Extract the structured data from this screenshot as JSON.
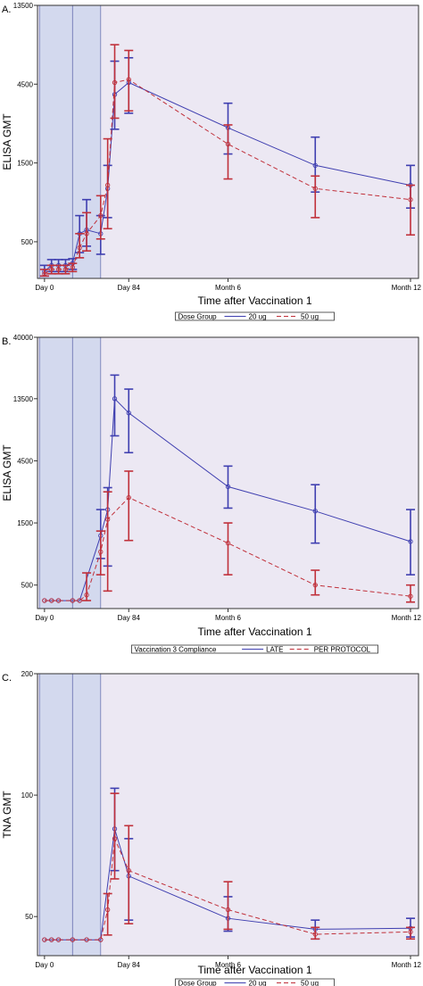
{
  "chart_data": [
    {
      "id": "A",
      "type": "line",
      "panel_label": "A.",
      "xlabel": "Time after Vaccination 1",
      "ylabel": "ELISA GMT",
      "y_scale": "log",
      "ylim": [
        300,
        13500
      ],
      "y_ticks": [
        500,
        1500,
        4500,
        13500
      ],
      "x_ticks": [
        {
          "day": 0,
          "label": "Day 0"
        },
        {
          "day": 84,
          "label": "Day 84"
        },
        {
          "day": 183,
          "label": "Month 6"
        },
        {
          "day": 365,
          "label": "Month 12"
        }
      ],
      "x_range_days": [
        -7,
        373
      ],
      "shaded_intervals": [
        [
          -5,
          28
        ],
        [
          28,
          56
        ]
      ],
      "legend": {
        "title": "Dose Group",
        "entries": [
          "20 ug",
          "50 ug"
        ],
        "position": "bottom"
      },
      "series": [
        {
          "name": "20 ug",
          "color": "#3f3fb0",
          "dash": "solid",
          "points": [
            {
              "x": 0,
              "y": 330,
              "lo": 310,
              "hi": 360
            },
            {
              "x": 7,
              "y": 360,
              "lo": 330,
              "hi": 390
            },
            {
              "x": 14,
              "y": 360,
              "lo": 330,
              "hi": 390
            },
            {
              "x": 21,
              "y": 360,
              "lo": 330,
              "hi": 390
            },
            {
              "x": 28,
              "y": 370,
              "lo": 340,
              "hi": 395
            },
            {
              "x": 35,
              "y": 560,
              "lo": 430,
              "hi": 720
            },
            {
              "x": 42,
              "y": 590,
              "lo": 470,
              "hi": 900
            },
            {
              "x": 56,
              "y": 560,
              "lo": 420,
              "hi": 720
            },
            {
              "x": 63,
              "y": 1050,
              "lo": 700,
              "hi": 1450
            },
            {
              "x": 70,
              "y": 3900,
              "lo": 2400,
              "hi": 6200
            },
            {
              "x": 84,
              "y": 4600,
              "lo": 3000,
              "hi": 6500
            },
            {
              "x": 183,
              "y": 2450,
              "lo": 1700,
              "hi": 3450
            },
            {
              "x": 270,
              "y": 1450,
              "lo": 1000,
              "hi": 2150
            },
            {
              "x": 365,
              "y": 1100,
              "lo": 800,
              "hi": 1450
            }
          ]
        },
        {
          "name": "50 ug",
          "color": "#c0303a",
          "dash": "dashed",
          "points": [
            {
              "x": 0,
              "y": 320,
              "lo": 310,
              "hi": 340
            },
            {
              "x": 7,
              "y": 340,
              "lo": 320,
              "hi": 360
            },
            {
              "x": 14,
              "y": 340,
              "lo": 320,
              "hi": 360
            },
            {
              "x": 21,
              "y": 340,
              "lo": 320,
              "hi": 360
            },
            {
              "x": 28,
              "y": 350,
              "lo": 330,
              "hi": 370
            },
            {
              "x": 35,
              "y": 460,
              "lo": 400,
              "hi": 560
            },
            {
              "x": 42,
              "y": 560,
              "lo": 440,
              "hi": 750
            },
            {
              "x": 56,
              "y": 720,
              "lo": 520,
              "hi": 950
            },
            {
              "x": 63,
              "y": 1100,
              "lo": 600,
              "hi": 2100
            },
            {
              "x": 70,
              "y": 4600,
              "lo": 2800,
              "hi": 7800
            },
            {
              "x": 84,
              "y": 4800,
              "lo": 3100,
              "hi": 7200
            },
            {
              "x": 183,
              "y": 1950,
              "lo": 1200,
              "hi": 2550
            },
            {
              "x": 270,
              "y": 1050,
              "lo": 700,
              "hi": 1250
            },
            {
              "x": 365,
              "y": 900,
              "lo": 550,
              "hi": 1100
            }
          ]
        }
      ]
    },
    {
      "id": "B",
      "type": "line",
      "panel_label": "B.",
      "xlabel": "Time after Vaccination 1",
      "ylabel": "ELISA GMT",
      "y_scale": "log",
      "ylim": [
        330,
        40000
      ],
      "y_ticks": [
        500,
        1500,
        4500,
        13500,
        40000
      ],
      "x_ticks": [
        {
          "day": 0,
          "label": "Day 0"
        },
        {
          "day": 84,
          "label": "Day 84"
        },
        {
          "day": 183,
          "label": "Month 6"
        },
        {
          "day": 365,
          "label": "Month 12"
        }
      ],
      "x_range_days": [
        -7,
        373
      ],
      "shaded_intervals": [
        [
          -5,
          28
        ],
        [
          28,
          56
        ]
      ],
      "legend": {
        "title": "Vaccination 3 Compliance",
        "entries": [
          "LATE",
          "PER PROTOCOL"
        ],
        "position": "bottom"
      },
      "series": [
        {
          "name": "LATE",
          "color": "#3f3fb0",
          "dash": "solid",
          "points": [
            {
              "x": 0,
              "y": 380
            },
            {
              "x": 7,
              "y": 380
            },
            {
              "x": 14,
              "y": 380
            },
            {
              "x": 28,
              "y": 380
            },
            {
              "x": 35,
              "y": 380
            },
            {
              "x": 56,
              "y": 1200,
              "lo": 800,
              "hi": 1900
            },
            {
              "x": 63,
              "y": 1900,
              "lo": 700,
              "hi": 2800
            },
            {
              "x": 70,
              "y": 13500,
              "lo": 7000,
              "hi": 20500
            },
            {
              "x": 84,
              "y": 10500,
              "lo": 5200,
              "hi": 16000
            },
            {
              "x": 183,
              "y": 2850,
              "lo": 1950,
              "hi": 4100
            },
            {
              "x": 270,
              "y": 1850,
              "lo": 1050,
              "hi": 2950
            },
            {
              "x": 365,
              "y": 1080,
              "lo": 600,
              "hi": 1900
            }
          ]
        },
        {
          "name": "PER PROTOCOL",
          "color": "#c0303a",
          "dash": "dashed",
          "points": [
            {
              "x": 0,
              "y": 380
            },
            {
              "x": 7,
              "y": 380
            },
            {
              "x": 14,
              "y": 380
            },
            {
              "x": 28,
              "y": 380
            },
            {
              "x": 35,
              "y": 380
            },
            {
              "x": 42,
              "y": 420,
              "lo": 380,
              "hi": 620
            },
            {
              "x": 56,
              "y": 900,
              "lo": 600,
              "hi": 1300
            },
            {
              "x": 63,
              "y": 1600,
              "lo": 450,
              "hi": 2600
            },
            {
              "x": 84,
              "y": 2350,
              "lo": 1100,
              "hi": 3750
            },
            {
              "x": 183,
              "y": 1050,
              "lo": 600,
              "hi": 1500
            },
            {
              "x": 270,
              "y": 500,
              "lo": 420,
              "hi": 650
            },
            {
              "x": 365,
              "y": 410,
              "lo": 370,
              "hi": 500
            }
          ]
        }
      ]
    },
    {
      "id": "C",
      "type": "line",
      "panel_label": "C.",
      "xlabel": "Time after Vaccination 1",
      "ylabel": "TNA GMT",
      "y_scale": "log",
      "ylim": [
        40,
        200
      ],
      "y_ticks": [
        50,
        100,
        200
      ],
      "x_ticks": [
        {
          "day": 0,
          "label": "Day 0"
        },
        {
          "day": 84,
          "label": "Day 84"
        },
        {
          "day": 183,
          "label": "Month 6"
        },
        {
          "day": 365,
          "label": "Month 12"
        }
      ],
      "x_range_days": [
        -7,
        373
      ],
      "shaded_intervals": [
        [
          -5,
          28
        ],
        [
          28,
          56
        ]
      ],
      "legend": {
        "title": "Dose Group",
        "entries": [
          "20 ug",
          "50 ug"
        ],
        "position": "bottom"
      },
      "series": [
        {
          "name": "20 ug",
          "color": "#3f3fb0",
          "dash": "solid",
          "points": [
            {
              "x": 0,
              "y": 43.8
            },
            {
              "x": 7,
              "y": 43.8
            },
            {
              "x": 14,
              "y": 43.8
            },
            {
              "x": 28,
              "y": 43.8
            },
            {
              "x": 42,
              "y": 43.8
            },
            {
              "x": 56,
              "y": 43.8
            },
            {
              "x": 70,
              "y": 82.5,
              "lo": 65,
              "hi": 104
            },
            {
              "x": 84,
              "y": 63,
              "lo": 49,
              "hi": 78
            },
            {
              "x": 183,
              "y": 49.5,
              "lo": 46,
              "hi": 56
            },
            {
              "x": 270,
              "y": 46.5,
              "lo": 44,
              "hi": 49
            },
            {
              "x": 365,
              "y": 46.8,
              "lo": 44.5,
              "hi": 49.5
            }
          ]
        },
        {
          "name": "50 ug",
          "color": "#c0303a",
          "dash": "dashed",
          "points": [
            {
              "x": 0,
              "y": 43.8
            },
            {
              "x": 7,
              "y": 43.8
            },
            {
              "x": 14,
              "y": 43.8
            },
            {
              "x": 28,
              "y": 43.8
            },
            {
              "x": 42,
              "y": 43.8
            },
            {
              "x": 56,
              "y": 43.8
            },
            {
              "x": 63,
              "y": 52,
              "lo": 45,
              "hi": 57
            },
            {
              "x": 70,
              "y": 78,
              "lo": 62,
              "hi": 101
            },
            {
              "x": 84,
              "y": 65,
              "lo": 48,
              "hi": 84
            },
            {
              "x": 183,
              "y": 52,
              "lo": 46.5,
              "hi": 61
            },
            {
              "x": 270,
              "y": 45.2,
              "lo": 44,
              "hi": 47
            },
            {
              "x": 365,
              "y": 45.8,
              "lo": 44,
              "hi": 47
            }
          ]
        }
      ]
    }
  ]
}
